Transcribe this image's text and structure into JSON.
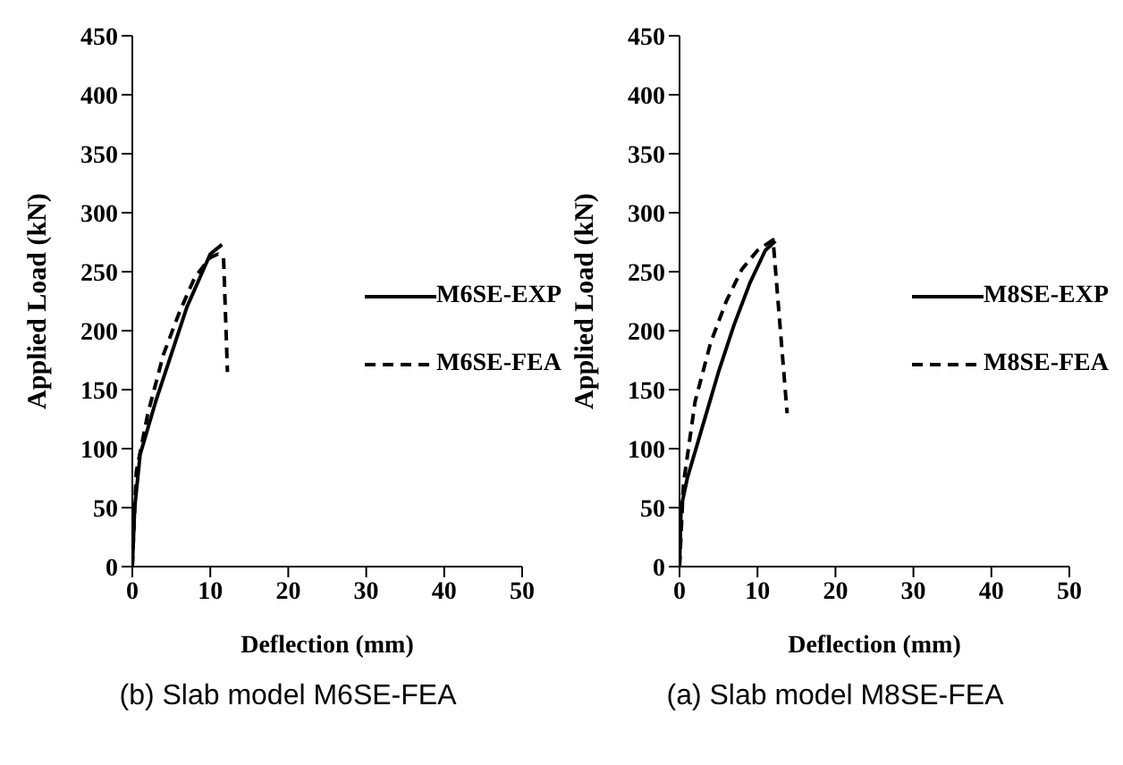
{
  "chart_data": [
    {
      "type": "line",
      "title": "(b) Slab model M6SE-FEA",
      "xlabel": "Deflection (mm)",
      "ylabel": "Applied Load (kN)",
      "xlim": [
        0,
        50
      ],
      "xticks": [
        0,
        10,
        20,
        30,
        40,
        50
      ],
      "ylim": [
        0,
        450
      ],
      "yticks": [
        0,
        50,
        100,
        150,
        200,
        250,
        300,
        350,
        400,
        450
      ],
      "grid": false,
      "legend": "right",
      "marker": "none",
      "series": [
        {
          "name": "M6SE-EXP",
          "color": "#000000",
          "line_style": "solid",
          "x": [
            0,
            0.3,
            1,
            3,
            5,
            7,
            9,
            10,
            11.5
          ],
          "values": [
            0,
            50,
            95,
            140,
            180,
            220,
            250,
            265,
            273
          ]
        },
        {
          "name": "M6SE-FEA",
          "color": "#000000",
          "line_style": "dashed",
          "x": [
            0,
            0.5,
            2,
            4,
            6,
            8,
            10,
            11,
            11.7,
            12.2
          ],
          "values": [
            0,
            80,
            130,
            180,
            215,
            245,
            262,
            265,
            262,
            165
          ]
        }
      ]
    },
    {
      "type": "line",
      "title": "(a) Slab model M8SE-FEA",
      "xlabel": "Deflection (mm)",
      "ylabel": "Applied Load (kN)",
      "xlim": [
        0,
        50
      ],
      "xticks": [
        0,
        10,
        20,
        30,
        40,
        50
      ],
      "ylim": [
        0,
        450
      ],
      "yticks": [
        0,
        50,
        100,
        150,
        200,
        250,
        300,
        350,
        400,
        450
      ],
      "grid": false,
      "legend": "right",
      "marker": "none",
      "series": [
        {
          "name": "M8SE-EXP",
          "color": "#000000",
          "line_style": "solid",
          "x": [
            0,
            0.2,
            1,
            3,
            5,
            7,
            9,
            11,
            12.3
          ],
          "values": [
            0,
            50,
            75,
            120,
            165,
            205,
            240,
            268,
            276
          ]
        },
        {
          "name": "M8SE-FEA",
          "color": "#000000",
          "line_style": "dashed",
          "x": [
            0,
            0.5,
            2,
            4,
            6,
            8,
            10,
            12,
            13.8
          ],
          "values": [
            0,
            70,
            140,
            190,
            225,
            252,
            268,
            277,
            130
          ]
        }
      ]
    }
  ]
}
